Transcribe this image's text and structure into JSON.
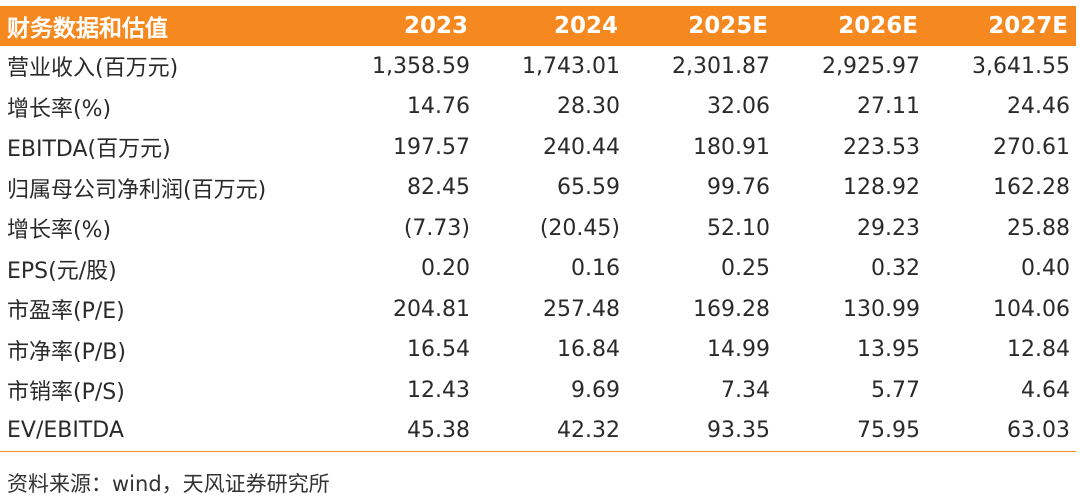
{
  "table": {
    "header": [
      "财务数据和估值",
      "2023",
      "2024",
      "2025E",
      "2026E",
      "2027E"
    ],
    "rows": [
      {
        "label": "营业收入(百万元)",
        "values": [
          "1,358.59",
          "1,743.01",
          "2,301.87",
          "2,925.97",
          "3,641.55"
        ]
      },
      {
        "label": "增长率(%)",
        "values": [
          "14.76",
          "28.30",
          "32.06",
          "27.11",
          "24.46"
        ]
      },
      {
        "label": "EBITDA(百万元)",
        "values": [
          "197.57",
          "240.44",
          "180.91",
          "223.53",
          "270.61"
        ]
      },
      {
        "label": "归属母公司净利润(百万元)",
        "values": [
          "82.45",
          "65.59",
          "99.76",
          "128.92",
          "162.28"
        ]
      },
      {
        "label": "增长率(%)",
        "values": [
          "(7.73)",
          "(20.45)",
          "52.10",
          "29.23",
          "25.88"
        ]
      },
      {
        "label": "EPS(元/股)",
        "values": [
          "0.20",
          "0.16",
          "0.25",
          "0.32",
          "0.40"
        ]
      },
      {
        "label": "市盈率(P/E)",
        "values": [
          "204.81",
          "257.48",
          "169.28",
          "130.99",
          "104.06"
        ]
      },
      {
        "label": "市净率(P/B)",
        "values": [
          "16.54",
          "16.84",
          "14.99",
          "13.95",
          "12.84"
        ]
      },
      {
        "label": "市销率(P/S)",
        "values": [
          "12.43",
          "9.69",
          "7.34",
          "5.77",
          "4.64"
        ]
      },
      {
        "label": "EV/EBITDA",
        "values": [
          "45.38",
          "42.32",
          "93.35",
          "75.95",
          "63.03"
        ]
      }
    ]
  },
  "source": "资料来源：wind，天风证券研究所",
  "colors": {
    "header_bg": "#f5891f",
    "header_text": "#ffffff",
    "rule": "#f5891f"
  }
}
